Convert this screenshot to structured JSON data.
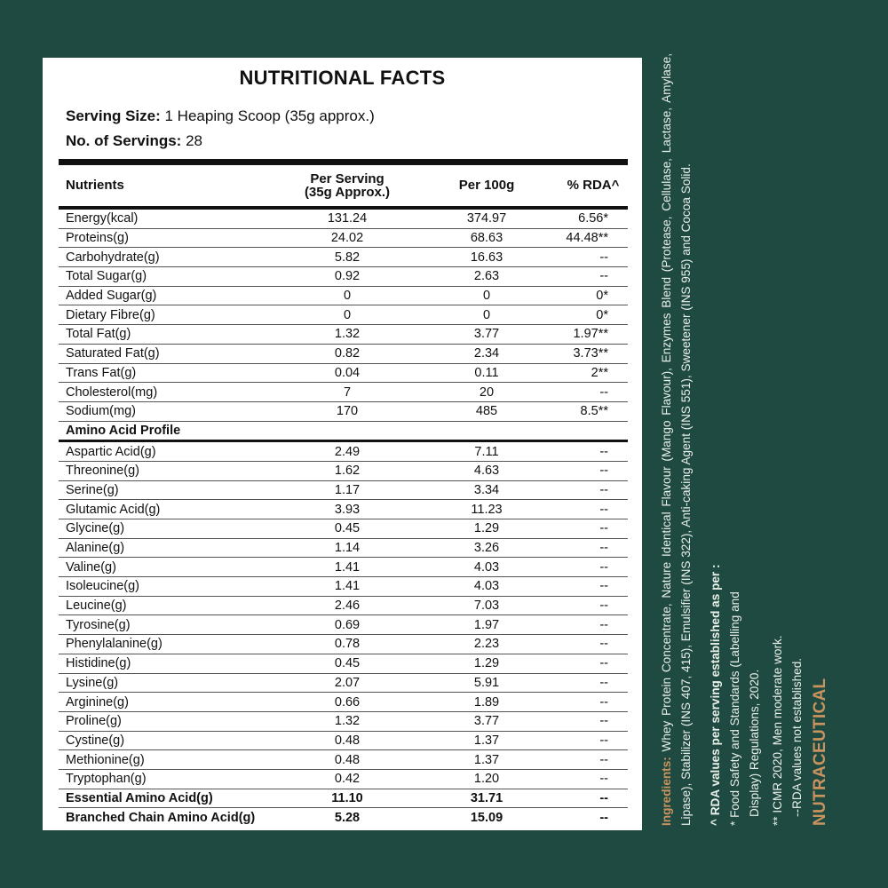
{
  "title": "NUTRITIONAL FACTS",
  "serving_size": {
    "label": "Serving Size:",
    "value": "1 Heaping Scoop (35g approx.)"
  },
  "servings": {
    "label": "No. of Servings:",
    "value": "28"
  },
  "columns": {
    "nutrients": "Nutrients",
    "per_serving": "Per Serving",
    "per_serving_sub": "(35g Approx.)",
    "per_100g": "Per 100g",
    "rda": "% RDA^"
  },
  "nutrients": [
    [
      "Energy(kcal)",
      "131.24",
      "374.97",
      "6.56*"
    ],
    [
      "Proteins(g)",
      "24.02",
      "68.63",
      "44.48**"
    ],
    [
      "Carbohydrate(g)",
      "5.82",
      "16.63",
      "--"
    ],
    [
      "Total Sugar(g)",
      "0.92",
      "2.63",
      "--"
    ],
    [
      "Added Sugar(g)",
      "0",
      "0",
      "0*"
    ],
    [
      "Dietary Fibre(g)",
      "0",
      "0",
      "0*"
    ],
    [
      "Total Fat(g)",
      "1.32",
      "3.77",
      "1.97**"
    ],
    [
      "Saturated Fat(g)",
      "0.82",
      "2.34",
      "3.73**"
    ],
    [
      "Trans Fat(g)",
      "0.04",
      "0.11",
      "2**"
    ],
    [
      "Cholesterol(mg)",
      "7",
      "20",
      "--"
    ],
    [
      "Sodium(mg)",
      "170",
      "485",
      "8.5**"
    ]
  ],
  "amino_section": "Amino Acid Profile",
  "amino_acids": [
    [
      "Aspartic Acid(g)",
      "2.49",
      "7.11",
      "--"
    ],
    [
      "Threonine(g)",
      "1.62",
      "4.63",
      "--"
    ],
    [
      "Serine(g)",
      "1.17",
      "3.34",
      "--"
    ],
    [
      "Glutamic Acid(g)",
      "3.93",
      "11.23",
      "--"
    ],
    [
      "Glycine(g)",
      "0.45",
      "1.29",
      "--"
    ],
    [
      "Alanine(g)",
      "1.14",
      "3.26",
      "--"
    ],
    [
      "Valine(g)",
      "1.41",
      "4.03",
      "--"
    ],
    [
      "Isoleucine(g)",
      "1.41",
      "4.03",
      "--"
    ],
    [
      "Leucine(g)",
      "2.46",
      "7.03",
      "--"
    ],
    [
      "Tyrosine(g)",
      "0.69",
      "1.97",
      "--"
    ],
    [
      "Phenylalanine(g)",
      "0.78",
      "2.23",
      "--"
    ],
    [
      "Histidine(g)",
      "0.45",
      "1.29",
      "--"
    ],
    [
      "Lysine(g)",
      "2.07",
      "5.91",
      "--"
    ],
    [
      "Arginine(g)",
      "0.66",
      "1.89",
      "--"
    ],
    [
      "Proline(g)",
      "1.32",
      "3.77",
      "--"
    ],
    [
      "Cystine(g)",
      "0.48",
      "1.37",
      "--"
    ],
    [
      "Methionine(g)",
      "0.48",
      "1.37",
      "--"
    ],
    [
      "Tryptophan(g)",
      "0.42",
      "1.20",
      "--"
    ]
  ],
  "totals": [
    [
      "Essential Amino Acid(g)",
      "11.10",
      "31.71",
      "--"
    ],
    [
      "Branched Chain Amino Acid(g)",
      "5.28",
      "15.09",
      "--"
    ]
  ],
  "side": {
    "ingredients_label": "Ingredients:",
    "ingredients": "Whey Protein Concentrate, Nature Identical Flavour (Mango Flavour), Enzymes Blend (Protease, Cellulase, Lactase, Amylase, Lipase), Stabilizer (INS 407, 415), Emulsifier (INS 322), Anti-caking Agent (INS 551), Sweetener (INS 955) and Cocoa Solid.",
    "rda_heading": "^ RDA values per serving established as per :",
    "rda_star_1": "* Food Safety and Standards (Labelling and",
    "rda_star_2": "Display) Regulations, 2020.",
    "rda_double": "** ICMR 2020, Men moderate work.",
    "rda_none": "--RDA values not established.",
    "brand": "NUTRACEUTICAL"
  },
  "colors": {
    "background": "#1e4a41",
    "accent": "#c8935e",
    "panel": "#ffffff"
  }
}
